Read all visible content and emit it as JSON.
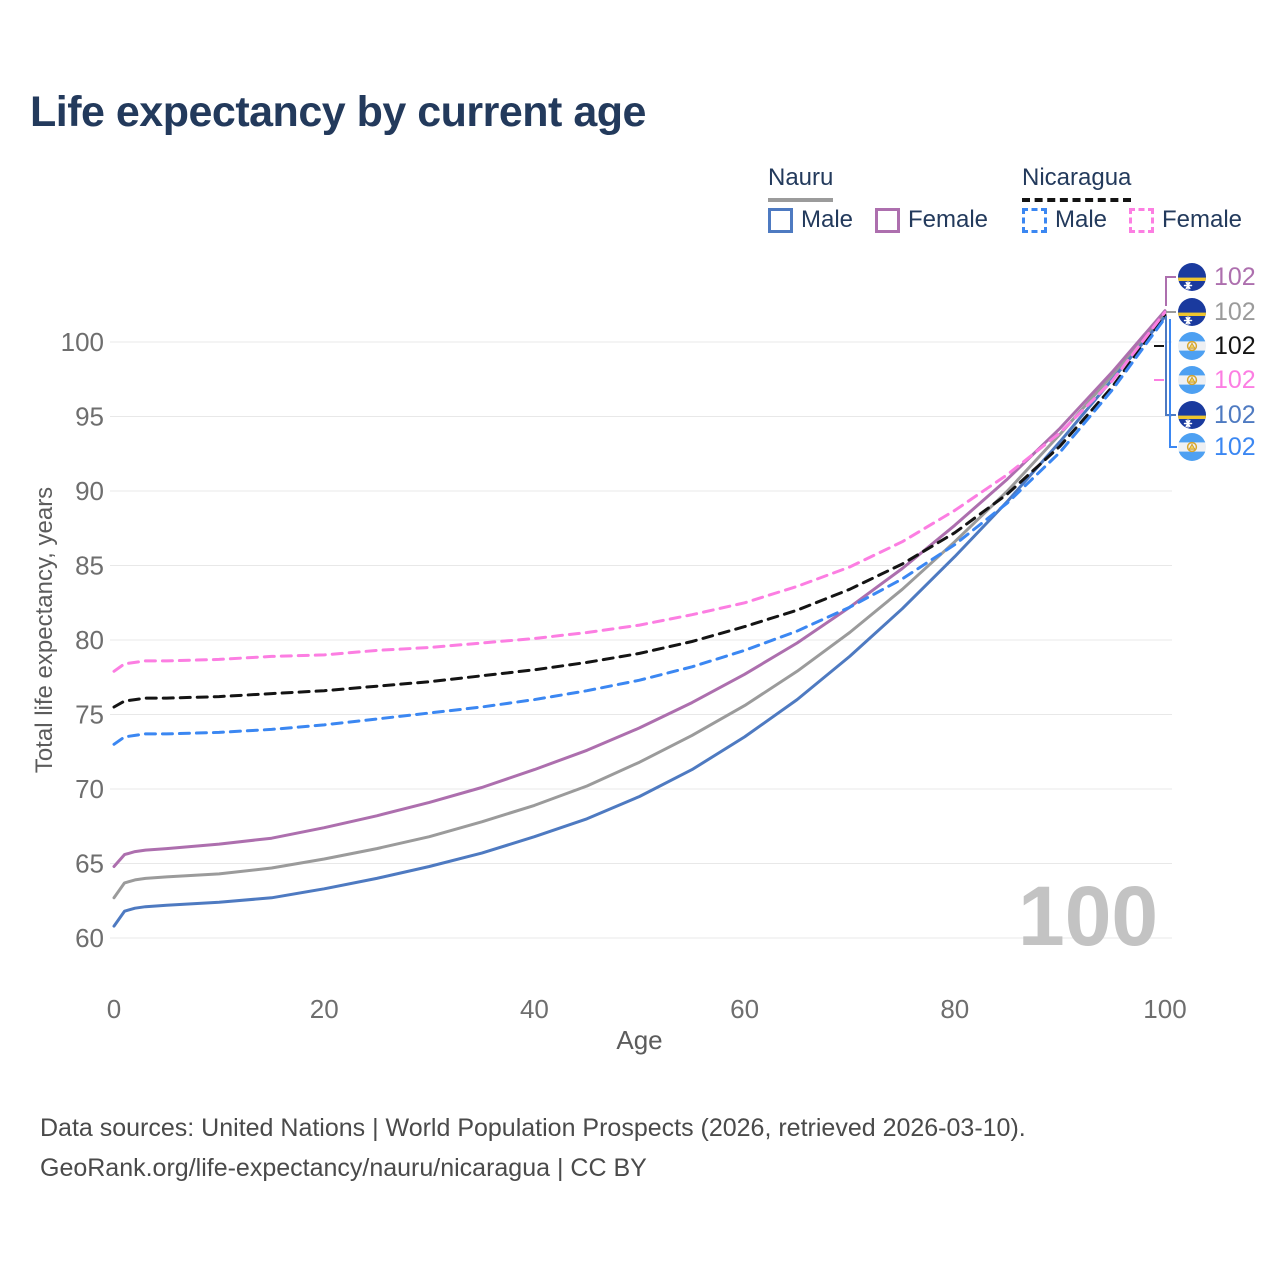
{
  "title": "Life expectancy by current age",
  "legend": {
    "groups": [
      {
        "name": "Nauru",
        "line_style": "solid",
        "line_color": "#9b9b9b",
        "items": [
          {
            "label": "Male",
            "color": "#4e7ac1"
          },
          {
            "label": "Female",
            "color": "#ad6fae"
          }
        ]
      },
      {
        "name": "Nicaragua",
        "line_style": "dashed",
        "line_color": "#141414",
        "items": [
          {
            "label": "Male",
            "color": "#3b87f2"
          },
          {
            "label": "Female",
            "color": "#fc7ee2"
          }
        ]
      }
    ]
  },
  "chart_data": {
    "type": "line",
    "title": "Life expectancy by current age",
    "xlabel": "Age",
    "ylabel": "Total life expectancy, years",
    "xlim": [
      0,
      100
    ],
    "ylim": [
      58,
      103
    ],
    "xticks": [
      0,
      20,
      40,
      60,
      80,
      100
    ],
    "yticks": [
      60,
      65,
      70,
      75,
      80,
      85,
      90,
      95,
      100
    ],
    "grid": "horizontal",
    "legend_position": "top-right",
    "x": [
      0,
      1,
      2,
      3,
      5,
      10,
      15,
      20,
      25,
      30,
      35,
      40,
      45,
      50,
      55,
      60,
      65,
      70,
      75,
      80,
      85,
      90,
      95,
      100
    ],
    "series": [
      {
        "name": "Nauru total",
        "country": "Nauru",
        "sex": "Both",
        "style": "solid",
        "color": "#9b9b9b",
        "values": [
          62.7,
          63.7,
          63.9,
          64.0,
          64.1,
          64.3,
          64.7,
          65.3,
          66.0,
          66.8,
          67.8,
          68.9,
          70.2,
          71.8,
          73.6,
          75.6,
          77.9,
          80.5,
          83.4,
          86.6,
          90.0,
          93.8,
          97.8,
          101.9
        ]
      },
      {
        "name": "Nauru Female",
        "country": "Nauru",
        "sex": "Female",
        "style": "solid",
        "color": "#ad6fae",
        "values": [
          64.8,
          65.6,
          65.8,
          65.9,
          66.0,
          66.3,
          66.7,
          67.4,
          68.2,
          69.1,
          70.1,
          71.3,
          72.6,
          74.1,
          75.8,
          77.7,
          79.8,
          82.2,
          84.8,
          87.7,
          90.8,
          94.2,
          98.0,
          102.1
        ]
      },
      {
        "name": "Nauru Male",
        "country": "Nauru",
        "sex": "Male",
        "style": "solid",
        "color": "#4e7ac1",
        "values": [
          60.8,
          61.8,
          62.0,
          62.1,
          62.2,
          62.4,
          62.7,
          63.3,
          64.0,
          64.8,
          65.7,
          66.8,
          68.0,
          69.5,
          71.3,
          73.5,
          76.0,
          78.9,
          82.1,
          85.6,
          89.3,
          93.3,
          97.5,
          101.7
        ]
      },
      {
        "name": "Nicaragua total",
        "country": "Nicaragua",
        "sex": "Both",
        "style": "dashed",
        "color": "#141414",
        "values": [
          75.5,
          75.9,
          76.0,
          76.1,
          76.1,
          76.2,
          76.4,
          76.6,
          76.9,
          77.2,
          77.6,
          78.0,
          78.5,
          79.1,
          79.9,
          80.9,
          82.0,
          83.4,
          85.1,
          87.2,
          89.8,
          93.0,
          97.0,
          101.8
        ]
      },
      {
        "name": "Nicaragua Male",
        "country": "Nicaragua",
        "sex": "Male",
        "style": "dashed",
        "color": "#3b87f2",
        "values": [
          73.0,
          73.5,
          73.6,
          73.7,
          73.7,
          73.8,
          74.0,
          74.3,
          74.7,
          75.1,
          75.5,
          76.0,
          76.6,
          77.3,
          78.2,
          79.3,
          80.6,
          82.2,
          84.1,
          86.4,
          89.2,
          92.6,
          96.8,
          101.6
        ]
      },
      {
        "name": "Nicaragua Female",
        "country": "Nicaragua",
        "sex": "Female",
        "style": "dashed",
        "color": "#fc7ee2",
        "values": [
          77.9,
          78.4,
          78.5,
          78.6,
          78.6,
          78.7,
          78.9,
          79.0,
          79.3,
          79.5,
          79.8,
          80.1,
          80.5,
          81.0,
          81.7,
          82.5,
          83.6,
          84.9,
          86.6,
          88.7,
          91.1,
          93.9,
          97.4,
          102.0
        ]
      }
    ]
  },
  "end_labels": [
    {
      "country": "Nauru",
      "series": "Nauru Female",
      "value": "102",
      "color": "#ad6fae"
    },
    {
      "country": "Nauru",
      "series": "Nauru total",
      "value": "102",
      "color": "#9b9b9b"
    },
    {
      "country": "Nicaragua",
      "series": "Nicaragua total",
      "value": "102",
      "color": "#141414"
    },
    {
      "country": "Nicaragua",
      "series": "Nicaragua Female",
      "value": "102",
      "color": "#fc7ee2"
    },
    {
      "country": "Nauru",
      "series": "Nauru Male",
      "value": "102",
      "color": "#4e7ac1"
    },
    {
      "country": "Nicaragua",
      "series": "Nicaragua Male",
      "value": "102",
      "color": "#3b87f2"
    }
  ],
  "watermark": "100",
  "footer": {
    "line1": "Data sources: United Nations | World Population Prospects (2026, retrieved 2026-03-10).",
    "line2": "GeoRank.org/life-expectancy/nauru/nicaragua | CC BY"
  }
}
